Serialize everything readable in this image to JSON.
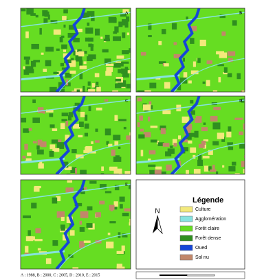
{
  "panels": [
    {
      "label": "A"
    },
    {
      "label": "B"
    },
    {
      "label": "C"
    },
    {
      "label": "D"
    },
    {
      "label": "E"
    }
  ],
  "legend": {
    "title": "Légende",
    "north": "N",
    "items": [
      {
        "label": "Culture",
        "color": "#f3e97c"
      },
      {
        "label": "Agglomération",
        "color": "#86e3e0"
      },
      {
        "label": "Forêt claire",
        "color": "#66dd22"
      },
      {
        "label": "Forêt dense",
        "color": "#2f8f1f"
      },
      {
        "label": "Oued",
        "color": "#1646d8"
      },
      {
        "label": "Sol nu",
        "color": "#c2876a"
      }
    ]
  },
  "caption": "A : 1988, B : 2000, C : 2005, D : 2010, E : 2015"
}
